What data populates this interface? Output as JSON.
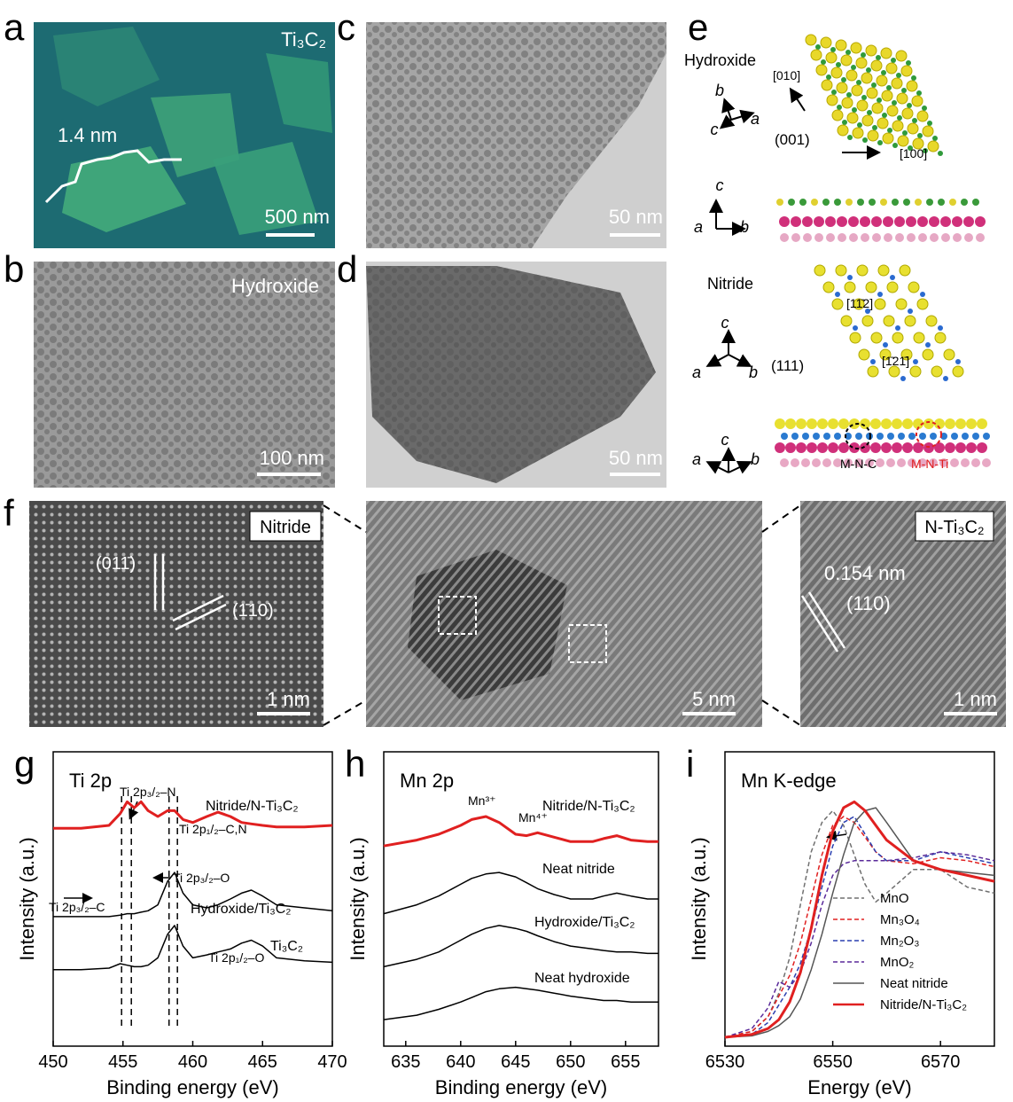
{
  "panels": {
    "a": {
      "label": "a",
      "caption": "Ti₃C₂",
      "profile_height": "1.4 nm",
      "scale_bar": "500 nm"
    },
    "b": {
      "label": "b",
      "caption": "Hydroxide",
      "scale_bar": "100 nm"
    },
    "c": {
      "label": "c",
      "scale_bar": "50 nm"
    },
    "d": {
      "label": "d",
      "scale_bar": "50 nm"
    },
    "e": {
      "label": "e",
      "hydroxide": "Hydroxide",
      "nitride": "Nitride",
      "hydroxide_directions": [
        "[010]",
        "[100]"
      ],
      "hydroxide_plane": "(001)",
      "nitride_directions": [
        "[11̄2]",
        "[1̄21̄]"
      ],
      "nitride_plane": "(111)",
      "sites": [
        "M-N-C",
        "M-N-Ti"
      ],
      "axes": [
        [
          "b",
          "c",
          "a"
        ],
        [
          "c",
          "a",
          "b"
        ],
        [
          "c",
          "a",
          "b"
        ],
        [
          "c",
          "a",
          "b"
        ]
      ]
    },
    "f": {
      "label": "f",
      "left_caption": "Nitride",
      "left_planes": [
        "(011̄)",
        "(1̄10)"
      ],
      "left_scale_bar": "1 nm",
      "middle_scale_bar": "5 nm",
      "right_caption": "N-Ti₃C₂",
      "right_spacing": "0.154 nm",
      "right_plane": "(110)",
      "right_scale_bar": "1 nm"
    }
  },
  "chart_data": [
    {
      "type": "line",
      "panel_label": "g",
      "title": "Ti 2p",
      "xlabel": "Binding energy (eV)",
      "ylabel": "Intensity (a.u.)",
      "x": [
        450,
        452,
        454,
        454.8,
        455.3,
        455.8,
        456.3,
        456.8,
        457.5,
        458.2,
        458.7,
        459.3,
        460,
        461,
        461.8,
        462.7,
        463.5,
        464.2,
        465,
        466,
        468,
        470
      ],
      "xlim": [
        450,
        470
      ],
      "xticks": [
        450,
        455,
        460,
        465,
        470
      ],
      "ylim": [
        0,
        10
      ],
      "legend": "inline",
      "series": [
        {
          "name": "Nitride/N-Ti₃C₂",
          "color": "#e02020",
          "style": "bold",
          "values": [
            7.4,
            7.4,
            7.5,
            7.9,
            8.3,
            8.1,
            8.3,
            8.0,
            7.8,
            8.0,
            8.0,
            7.7,
            7.6,
            7.8,
            7.95,
            7.8,
            7.6,
            7.55,
            7.5,
            7.45,
            7.45,
            7.5
          ]
        },
        {
          "name": "Hydroxide/Ti₃C₂",
          "color": "#000000",
          "style": "solid",
          "values": [
            4.4,
            4.4,
            4.4,
            4.45,
            4.5,
            4.5,
            4.55,
            4.6,
            4.8,
            5.6,
            5.9,
            5.2,
            4.8,
            4.7,
            4.8,
            5.0,
            5.2,
            5.3,
            5.1,
            4.8,
            4.7,
            4.6
          ]
        },
        {
          "name": "Ti₃C₂",
          "color": "#000000",
          "style": "solid",
          "values": [
            2.6,
            2.6,
            2.65,
            2.8,
            2.75,
            2.7,
            2.7,
            2.75,
            3.0,
            3.8,
            4.1,
            3.4,
            3.0,
            3.1,
            3.2,
            3.3,
            3.5,
            3.6,
            3.4,
            3.0,
            2.9,
            2.85
          ]
        }
      ],
      "annotations": [
        "Ti 2p₃/₂–N",
        "Ti 2p₁/₂–C,N",
        "Ti 2p₃/₂–O",
        "Ti 2p₃/₂–C",
        "Ti 2p₁/₂–O"
      ],
      "reference_lines": [
        454.9,
        455.6,
        458.3,
        458.9
      ]
    },
    {
      "type": "line",
      "panel_label": "h",
      "title": "Mn 2p",
      "xlabel": "Binding energy (eV)",
      "ylabel": "Intensity (a.u.)",
      "x": [
        633,
        636,
        638,
        640,
        641,
        642.3,
        643.5,
        645,
        646,
        647,
        648.5,
        650,
        652,
        653,
        654.2,
        655.5,
        657,
        658
      ],
      "xlim": [
        633,
        658
      ],
      "xticks": [
        635,
        640,
        645,
        650,
        655
      ],
      "ylim": [
        0,
        10
      ],
      "legend": "inline",
      "series": [
        {
          "name": "Nitride/N-Ti₃C₂",
          "color": "#e02020",
          "style": "bold",
          "values": [
            6.8,
            7.0,
            7.2,
            7.5,
            7.7,
            7.8,
            7.6,
            7.2,
            7.15,
            7.25,
            7.1,
            6.95,
            6.95,
            7.05,
            7.15,
            7.0,
            6.95,
            6.95
          ]
        },
        {
          "name": "Neat nitride",
          "color": "#000000",
          "style": "solid",
          "values": [
            4.5,
            4.8,
            5.1,
            5.5,
            5.7,
            5.85,
            5.9,
            5.75,
            5.55,
            5.35,
            5.15,
            5.0,
            5.0,
            5.1,
            5.2,
            5.1,
            5.0,
            5.0
          ]
        },
        {
          "name": "Hydroxide/Ti₃C₂",
          "color": "#000000",
          "style": "solid",
          "values": [
            2.7,
            2.95,
            3.2,
            3.6,
            3.8,
            4.0,
            4.1,
            4.0,
            3.9,
            3.75,
            3.55,
            3.4,
            3.3,
            3.25,
            3.2,
            3.2,
            3.15,
            3.15
          ]
        },
        {
          "name": "Neat hydroxide",
          "color": "#000000",
          "style": "solid",
          "values": [
            0.9,
            1.05,
            1.25,
            1.5,
            1.65,
            1.85,
            1.95,
            2.0,
            1.95,
            1.9,
            1.8,
            1.7,
            1.6,
            1.55,
            1.55,
            1.5,
            1.5,
            1.5
          ]
        }
      ],
      "annotations": [
        "Mn³⁺",
        "Mn⁴⁺"
      ]
    },
    {
      "type": "line",
      "panel_label": "i",
      "title": "Mn K-edge",
      "xlabel": "Energy (eV)",
      "ylabel": "Intensity (a.u.)",
      "x": [
        6530,
        6535,
        6538,
        6540,
        6542,
        6544,
        6546,
        6548,
        6550,
        6552,
        6554,
        6556,
        6558,
        6560,
        6565,
        6570,
        6575,
        6580
      ],
      "xlim": [
        6530,
        6580
      ],
      "xticks": [
        6530,
        6550,
        6570
      ],
      "ylim": [
        0,
        10
      ],
      "legend": "lower-right",
      "series": [
        {
          "name": "MnO",
          "color": "#707070",
          "style": "dashed",
          "values": [
            0.3,
            0.5,
            1.0,
            1.8,
            3.0,
            4.8,
            6.6,
            7.6,
            8.0,
            7.5,
            6.5,
            5.5,
            4.9,
            5.2,
            6.0,
            6.0,
            5.4,
            5.2
          ]
        },
        {
          "name": "Mn₃O₄",
          "color": "#e02020",
          "style": "dashed",
          "values": [
            0.3,
            0.5,
            1.0,
            1.7,
            2.4,
            3.5,
            5.0,
            6.5,
            7.5,
            7.8,
            7.6,
            7.1,
            6.6,
            6.3,
            6.2,
            6.4,
            6.3,
            6.1
          ]
        },
        {
          "name": "Mn₂O₃",
          "color": "#2a3fb0",
          "style": "dashed",
          "values": [
            0.3,
            0.4,
            0.8,
            1.4,
            2.0,
            2.8,
            4.0,
            5.4,
            6.8,
            7.6,
            7.8,
            7.2,
            6.6,
            6.3,
            6.3,
            6.6,
            6.4,
            6.2
          ]
        },
        {
          "name": "MnO₂",
          "color": "#5a2a9a",
          "style": "dashed",
          "values": [
            0.3,
            0.6,
            1.3,
            2.2,
            2.0,
            2.5,
            3.5,
            4.8,
            5.8,
            6.2,
            6.3,
            6.3,
            6.3,
            6.3,
            6.4,
            6.6,
            6.5,
            6.3
          ]
        },
        {
          "name": "Neat nitride",
          "color": "#555555",
          "style": "solid",
          "values": [
            0.3,
            0.35,
            0.5,
            0.7,
            1.0,
            1.6,
            2.6,
            3.8,
            5.2,
            6.5,
            7.6,
            8.0,
            8.1,
            7.6,
            6.3,
            6.0,
            5.9,
            5.8
          ]
        },
        {
          "name": "Nitride/N-Ti₃C₂",
          "color": "#e02020",
          "style": "bold",
          "values": [
            0.3,
            0.4,
            0.6,
            0.9,
            1.5,
            2.5,
            4.0,
            5.8,
            7.3,
            8.1,
            8.3,
            8.0,
            7.5,
            7.0,
            6.3,
            6.0,
            5.8,
            5.6
          ]
        }
      ]
    }
  ]
}
